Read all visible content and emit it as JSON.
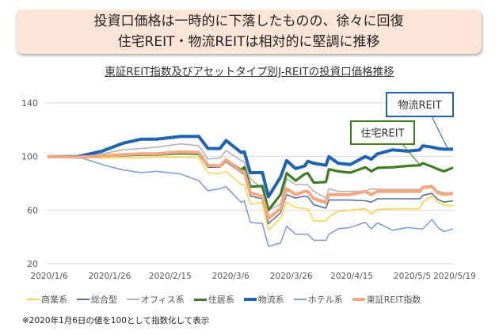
{
  "headline": {
    "line1": "投資口価格は一時的に下落したものの、徐々に回復",
    "line2": "住宅REIT・物流REITは相対的に堅調に推移"
  },
  "footnote": "※2020年1月6日の値を100として指数化して表示",
  "chart_data": {
    "type": "line",
    "title": "東証REIT指数及びアセットタイプ別J-REITの投資口価格推移",
    "xlabel": "",
    "ylabel": "",
    "ylim": [
      20,
      140
    ],
    "yticks": [
      "140",
      "100",
      "60",
      "20"
    ],
    "xlim": [
      "2020-01-06",
      "2020-05-19"
    ],
    "xtick_dates": [
      "2020-01-06",
      "2020-01-26",
      "2020-02-15",
      "2020-03-06",
      "2020-03-26",
      "2020-04-15",
      "2020-05-05",
      "2020-05-19"
    ],
    "xtick_labels": [
      "2020/1/6",
      "2020/1/26",
      "2020/2/15",
      "2020/3/6",
      "2020/3/26",
      "2020/4/15",
      "2020/5/5",
      "2020/5/19"
    ],
    "grid": true,
    "legend_position": "bottom",
    "x": [
      "2020-01-06",
      "2020-01-16",
      "2020-01-24",
      "2020-01-31",
      "2020-02-06",
      "2020-02-11",
      "2020-02-19",
      "2020-02-25",
      "2020-02-28",
      "2020-03-03",
      "2020-03-05",
      "2020-03-10",
      "2020-03-11",
      "2020-03-13",
      "2020-03-17",
      "2020-03-19",
      "2020-03-23",
      "2020-03-25",
      "2020-03-28",
      "2020-03-31",
      "2020-04-01",
      "2020-04-03",
      "2020-04-07",
      "2020-04-08",
      "2020-04-11",
      "2020-04-15",
      "2020-04-20",
      "2020-04-22",
      "2020-04-24",
      "2020-04-29",
      "2020-05-04",
      "2020-05-08",
      "2020-05-09",
      "2020-05-12",
      "2020-05-14",
      "2020-05-16",
      "2020-05-19"
    ],
    "series": [
      {
        "name": "商業系",
        "color": "#ffd34a",
        "width": 1.6,
        "values": [
          100,
          99.5,
          99,
          99,
          99,
          99.5,
          99.5,
          99,
          88,
          87,
          89,
          79,
          79,
          64.5,
          65.7,
          45,
          54,
          65.7,
          62,
          61,
          61,
          52,
          52,
          55,
          59,
          60,
          61,
          57,
          60.5,
          61,
          61,
          61,
          66,
          70.5,
          66,
          64,
          63
        ]
      },
      {
        "name": "総合型",
        "color": "#5b6f99",
        "width": 1.6,
        "values": [
          100,
          99.5,
          100,
          101,
          101,
          101,
          102,
          101.5,
          92,
          92,
          96,
          88,
          87,
          70.5,
          68.5,
          50,
          58,
          71.6,
          69,
          70.5,
          70,
          64,
          61.5,
          67.5,
          67.5,
          67.5,
          67,
          66,
          68.5,
          68.5,
          68.5,
          68.5,
          71,
          72.5,
          68,
          66,
          67
        ]
      },
      {
        "name": "オフィス系",
        "color": "#b4b4b4",
        "width": 1.6,
        "values": [
          100,
          100,
          102,
          105,
          106,
          107,
          109.5,
          108,
          98,
          99,
          104.5,
          97,
          96,
          83.4,
          76,
          60,
          64.5,
          83.4,
          79,
          79,
          79,
          74,
          69,
          76,
          74,
          74,
          74,
          76,
          75.5,
          75.5,
          75.5,
          75.5,
          77.5,
          78.5,
          74,
          73,
          73
        ]
      },
      {
        "name": "住居系",
        "color": "#3f7d23",
        "width": 3.2,
        "values": [
          100,
          99.5,
          100.5,
          101,
          101.5,
          101.5,
          102.5,
          102,
          93,
          93,
          97.5,
          90,
          92,
          77.5,
          78,
          60,
          71.6,
          87.6,
          82,
          87,
          87.6,
          80.5,
          81,
          90.5,
          89,
          88,
          92,
          89,
          91.5,
          92,
          93,
          93.5,
          95,
          92.5,
          90.5,
          89,
          91.7
        ]
      },
      {
        "name": "物流系",
        "color": "#1f64b1",
        "width": 4,
        "values": [
          100,
          100,
          104,
          110,
          113,
          113,
          115,
          115,
          106,
          106,
          112,
          103,
          103.5,
          88,
          88,
          70,
          84.6,
          97,
          91,
          93,
          96.5,
          95,
          93.5,
          100,
          95,
          94,
          100,
          98,
          102,
          105,
          104,
          105,
          108,
          107,
          106,
          105.5,
          105.5
        ]
      },
      {
        "name": "ホテル系",
        "color": "#7f9fdc",
        "width": 1.6,
        "values": [
          100,
          100,
          94,
          90,
          88,
          89,
          87,
          82,
          74.5,
          76,
          77.5,
          65.7,
          67,
          51,
          50,
          33,
          35.5,
          48,
          42,
          42,
          42,
          37.5,
          37.5,
          42,
          46,
          47,
          51,
          46,
          50.5,
          45,
          47,
          46,
          46,
          53,
          47,
          44,
          46
        ]
      },
      {
        "name": "東証REIT指数",
        "color": "#f4a880",
        "width": 4,
        "values": [
          100,
          99.5,
          100.5,
          101.5,
          102,
          102,
          103.5,
          103,
          93.5,
          93,
          97.6,
          89,
          88.5,
          72.8,
          70.5,
          54,
          61,
          76,
          71.6,
          74,
          74,
          68.6,
          65.7,
          71.6,
          71.6,
          71.6,
          74,
          71.6,
          74,
          74,
          74,
          74,
          77,
          77.5,
          73,
          71.6,
          72.5
        ]
      }
    ],
    "annotations": [
      {
        "text": "物流REIT",
        "color": "#1f64b1",
        "target_series": "物流系"
      },
      {
        "text": "住宅REIT",
        "color": "#3f7d23",
        "target_series": "住居系"
      }
    ]
  }
}
